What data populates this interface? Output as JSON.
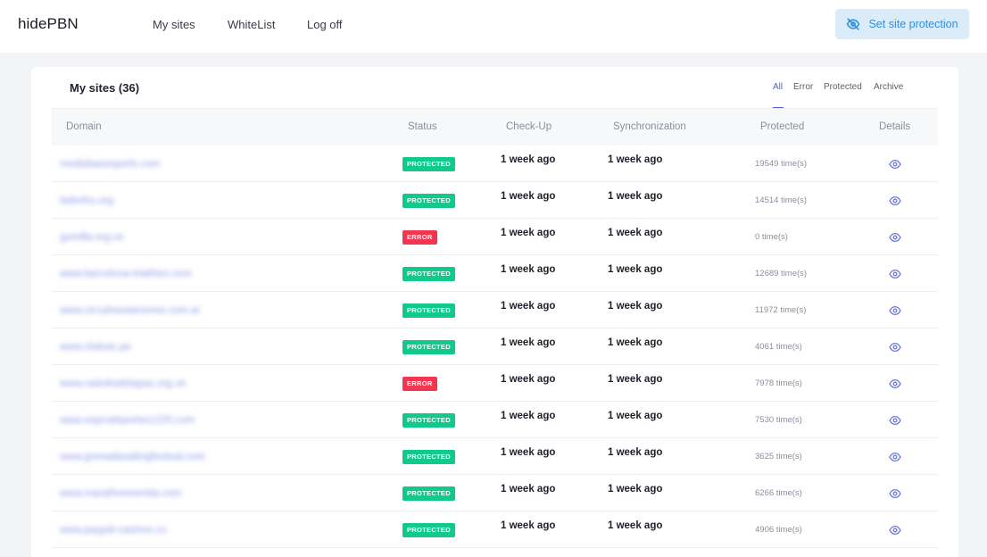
{
  "app": {
    "logo": "hidePBN",
    "nav": [
      {
        "label": "My sites"
      },
      {
        "label": "WhiteList"
      },
      {
        "label": "Log off"
      }
    ],
    "protect_button": {
      "label": "Set site protection",
      "icon": "eye-off-icon"
    }
  },
  "colors": {
    "accent": "#4a5fd8",
    "protected": "#10c98a",
    "error": "#f3364f",
    "button_bg": "#dcebf8",
    "button_text": "#2f8fe0"
  },
  "card": {
    "title": "My sites (36)",
    "filters": [
      {
        "label": "All",
        "active": true
      },
      {
        "label": "Error",
        "active": false
      },
      {
        "label": "Protected",
        "active": false
      },
      {
        "label": "Archive",
        "active": false
      }
    ]
  },
  "table": {
    "headers": {
      "domain": "Domain",
      "status": "Status",
      "checkup": "Check-Up",
      "sync": "Synchronization",
      "protected": "Protected",
      "details": "Details"
    },
    "rows": [
      {
        "domain": "mediabasesports.com",
        "status": "PROTECTED",
        "status_type": "protected",
        "checkup": "1 week ago",
        "sync": "1 week ago",
        "protected": "19549 time(s)",
        "details_icon": "eye-icon"
      },
      {
        "domain": "ladeshu.org",
        "status": "PROTECTED",
        "status_type": "protected",
        "checkup": "1 week ago",
        "sync": "1 week ago",
        "protected": "14514 time(s)",
        "details_icon": "eye-icon"
      },
      {
        "domain": "gumilla.org.ve",
        "status": "ERROR",
        "status_type": "error",
        "checkup": "1 week ago",
        "sync": "1 week ago",
        "protected": "0 time(s)",
        "details_icon": "eye-icon"
      },
      {
        "domain": "www.barcelona-triathlon.com",
        "status": "PROTECTED",
        "status_type": "protected",
        "checkup": "1 week ago",
        "sync": "1 week ago",
        "protected": "12689 time(s)",
        "details_icon": "eye-icon"
      },
      {
        "domain": "www.circuitoestaciones.com.ar",
        "status": "PROTECTED",
        "status_type": "protected",
        "checkup": "1 week ago",
        "sync": "1 week ago",
        "protected": "11972 time(s)",
        "details_icon": "eye-icon"
      },
      {
        "domain": "www.clubutc.pe",
        "status": "PROTECTED",
        "status_type": "protected",
        "checkup": "1 week ago",
        "sync": "1 week ago",
        "protected": "4061 time(s)",
        "details_icon": "eye-icon"
      },
      {
        "domain": "www.catedradelapaz.org.ve",
        "status": "ERROR",
        "status_type": "error",
        "checkup": "1 week ago",
        "sync": "1 week ago",
        "protected": "7978 time(s)",
        "details_icon": "eye-icon"
      },
      {
        "domain": "www.esprodeportes1220.com",
        "status": "PROTECTED",
        "status_type": "protected",
        "checkup": "1 week ago",
        "sync": "1 week ago",
        "protected": "7530 time(s)",
        "details_icon": "eye-icon"
      },
      {
        "domain": "www.grenadasailingfestival.com",
        "status": "PROTECTED",
        "status_type": "protected",
        "checkup": "1 week ago",
        "sync": "1 week ago",
        "protected": "3625 time(s)",
        "details_icon": "eye-icon"
      },
      {
        "domain": "www.marathonmerida.com",
        "status": "PROTECTED",
        "status_type": "protected",
        "checkup": "1 week ago",
        "sync": "1 week ago",
        "protected": "6266 time(s)",
        "details_icon": "eye-icon"
      },
      {
        "domain": "www.paypal-casinos.co",
        "status": "PROTECTED",
        "status_type": "protected",
        "checkup": "1 week ago",
        "sync": "1 week ago",
        "protected": "4906 time(s)",
        "details_icon": "eye-icon"
      }
    ]
  }
}
